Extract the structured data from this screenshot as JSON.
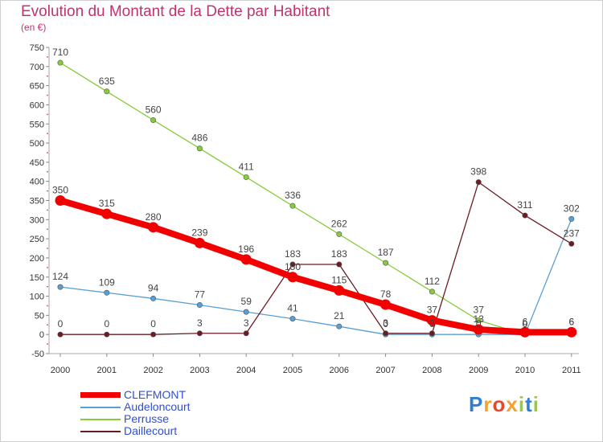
{
  "header": {
    "title": "Evolution du Montant de la Dette par Habitant",
    "unit": "(en €)"
  },
  "logo": {
    "letters": [
      "P",
      "r",
      "o",
      "x",
      "i",
      "t",
      "i"
    ],
    "colors": [
      "#2f7fd1",
      "#f4a12e",
      "#e34a2e",
      "#f4a12e",
      "#9ac93d",
      "#2f7fd1",
      "#9ac93d"
    ]
  },
  "chart_data": {
    "type": "line",
    "title": "Evolution du Montant de la Dette par Habitant",
    "ylabel": "(en €)",
    "x": [
      "2000",
      "2001",
      "2002",
      "2003",
      "2004",
      "2005",
      "2006",
      "2007",
      "2008",
      "2009",
      "2010",
      "2011"
    ],
    "ylim": [
      -50,
      750
    ],
    "yticks": [
      -50,
      0,
      50,
      100,
      150,
      200,
      250,
      300,
      350,
      400,
      450,
      500,
      550,
      600,
      650,
      700,
      750
    ],
    "grid": false,
    "legend_position": "bottom-left",
    "series": [
      {
        "name": "Perrusse",
        "color": "#86cc3a",
        "values": [
          710,
          635,
          560,
          486,
          411,
          336,
          262,
          187,
          112,
          37,
          0,
          6
        ],
        "labels": [
          "710",
          "635",
          "560",
          "486",
          "411",
          "336",
          "262",
          "187",
          "112",
          "37",
          "0",
          "6"
        ]
      },
      {
        "name": "Audeloncourt",
        "color": "#5a9fd4",
        "values": [
          124,
          109,
          94,
          77,
          59,
          41,
          21,
          0,
          0,
          0,
          0,
          302
        ],
        "labels": [
          "124",
          "109",
          "94",
          "77",
          "59",
          "41",
          "21",
          "0",
          "0",
          "0",
          "0",
          "302"
        ]
      },
      {
        "name": "Daillecourt",
        "color": "#6b1c22",
        "values": [
          0,
          0,
          0,
          3,
          3,
          183,
          183,
          3,
          3,
          398,
          311,
          237
        ],
        "labels": [
          "0",
          "0",
          "0",
          "3",
          "3",
          "183",
          "183",
          "3",
          "3",
          "398",
          "311",
          "237"
        ]
      },
      {
        "name": "CLEFMONT",
        "color": "#f20000",
        "values": [
          350,
          315,
          280,
          239,
          196,
          150,
          115,
          78,
          37,
          13,
          6,
          6
        ],
        "labels": [
          "350",
          "315",
          "280",
          "239",
          "196",
          "150",
          "115",
          "78",
          "37",
          "13",
          "6",
          "6"
        ]
      }
    ]
  },
  "legend": {
    "items": [
      {
        "label": "CLEFMONT",
        "color": "#f20000",
        "thick": true
      },
      {
        "label": "Audeloncourt",
        "color": "#5a9fd4",
        "thick": false
      },
      {
        "label": "Perrusse",
        "color": "#86cc3a",
        "thick": false
      },
      {
        "label": "Daillecourt",
        "color": "#6b1c22",
        "thick": false
      }
    ]
  }
}
